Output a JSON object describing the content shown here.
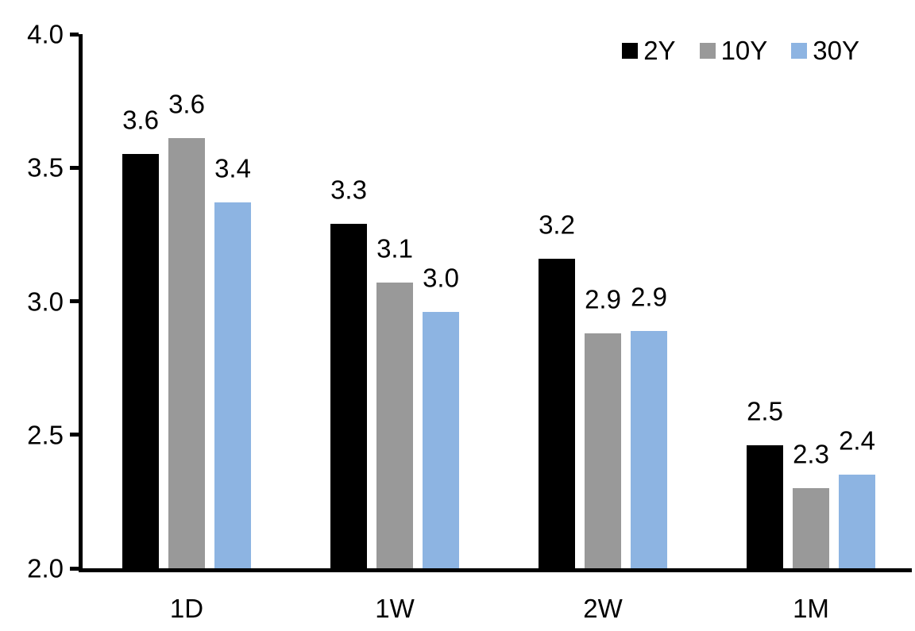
{
  "chart_data": {
    "type": "bar",
    "title": "",
    "xlabel": "",
    "ylabel": "",
    "categories": [
      "1D",
      "1W",
      "2W",
      "1M"
    ],
    "series": [
      {
        "name": "2Y",
        "color": "#000000",
        "values": [
          3.55,
          3.29,
          3.16,
          2.46
        ],
        "labels": [
          "3.6",
          "3.3",
          "3.2",
          "2.5"
        ]
      },
      {
        "name": "10Y",
        "color": "#999999",
        "values": [
          3.61,
          3.07,
          2.88,
          2.3
        ],
        "labels": [
          "3.6",
          "3.1",
          "2.9",
          "2.3"
        ]
      },
      {
        "name": "30Y",
        "color": "#8DB4E2",
        "values": [
          3.37,
          2.96,
          2.89,
          2.35
        ],
        "labels": [
          "3.4",
          "3.0",
          "2.9",
          "2.4"
        ]
      }
    ],
    "y_axis": {
      "min": 2.0,
      "max": 4.0,
      "tick_values": [
        4.0,
        3.5,
        3.0,
        2.5,
        2.0
      ],
      "tick_labels": [
        "4.0",
        "3.5",
        "3.0",
        "2.5",
        "2.0"
      ]
    },
    "legend_position": "top-right",
    "grid": false,
    "axis_color": "#000000"
  }
}
